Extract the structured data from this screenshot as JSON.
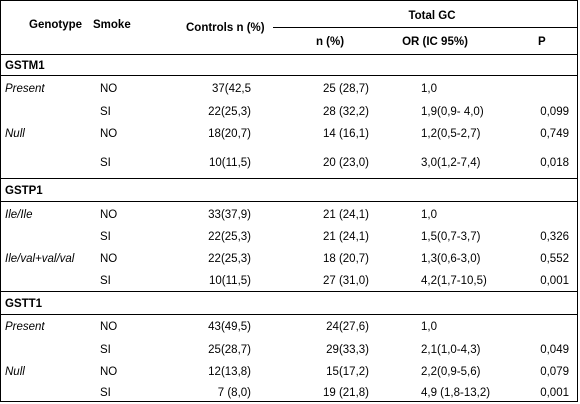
{
  "header": {
    "genotype": "Genotype",
    "smoke": "Smoke",
    "controls": "Controls n (%)",
    "total_gc": "Total GC",
    "n_pct": "n (%)",
    "or_ic": "OR (IC 95%)",
    "p": "P"
  },
  "sections": [
    {
      "title": "GSTM1",
      "rows": [
        {
          "genotype": "Present",
          "smoke": "NO",
          "controls": "37(42,5",
          "n": "25 (28,7)",
          "or": "1,0",
          "p": ""
        },
        {
          "genotype": "",
          "smoke": "SI",
          "controls": "22(25,3)",
          "n": "28 (32,2)",
          "or": "1,9(0,9- 4,0)",
          "p": "0,099"
        },
        {
          "genotype": "Null",
          "smoke": "NO",
          "controls": "18(20,7)",
          "n": "14 (16,1)",
          "or": "1,2(0,5-2,7)",
          "p": "0,749"
        },
        {
          "genotype": "",
          "smoke": "SI",
          "controls": "10(11,5)",
          "n": "20 (23,0)",
          "or": "3,0(1,2-7,4)",
          "p": "0,018"
        }
      ]
    },
    {
      "title": "GSTP1",
      "rows": [
        {
          "genotype": "Ile/Ile",
          "smoke": "NO",
          "controls": "33(37,9)",
          "n": "21 (24,1)",
          "or": "1,0",
          "p": ""
        },
        {
          "genotype": "",
          "smoke": "SI",
          "controls": "22(25,3)",
          "n": "21 (24,1)",
          "or": "1,5(0,7-3,7)",
          "p": "0,326"
        },
        {
          "genotype": "Ile/val+val/val",
          "smoke": "NO",
          "controls": "22(25,3)",
          "n": "18 (20,7)",
          "or": "1,3(0,6-3,0)",
          "p": "0,552"
        },
        {
          "genotype": "",
          "smoke": "SI",
          "controls": "10(11,5)",
          "n": "27 (31,0)",
          "or": "4,2(1,7-10,5)",
          "p": "0,001"
        }
      ]
    },
    {
      "title": "GSTT1",
      "rows": [
        {
          "genotype": "Present",
          "smoke": "NO",
          "controls": "43(49,5)",
          "n": "24(27,6)",
          "or": "1,0",
          "p": ""
        },
        {
          "genotype": "",
          "smoke": "SI",
          "controls": "25(28,7)",
          "n": "29(33,3)",
          "or": "2,1(1,0-4,3)",
          "p": "0,049"
        },
        {
          "genotype": "Null",
          "smoke": "NO",
          "controls": "12(13,8)",
          "n": "15(17,2)",
          "or": "2,2(0,9-5,6)",
          "p": "0,079"
        },
        {
          "genotype": "",
          "smoke": "SI",
          "controls": "7 (8,0)",
          "n": "19 (21,8)",
          "or": "4,9 (1,8-13,2)",
          "p": "0,001"
        }
      ]
    }
  ]
}
